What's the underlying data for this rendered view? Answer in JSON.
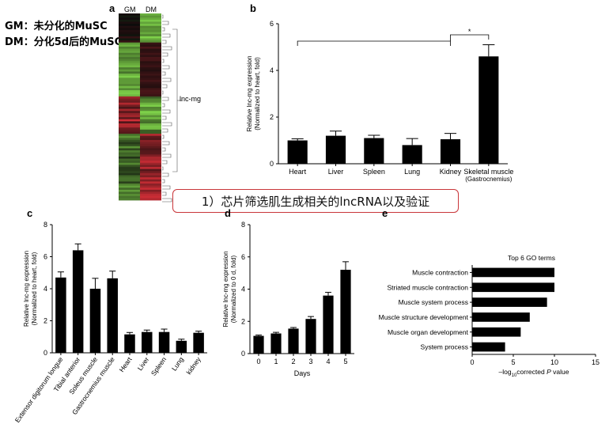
{
  "notes": {
    "gm": "GM：未分化的MuSC",
    "dm": "DM：分化5d后的MuSC"
  },
  "banner": "1）芯片筛选肌生成相关的lncRNA以及验证",
  "panels": {
    "a": {
      "letter": "a",
      "columns": [
        "GM",
        "DM"
      ],
      "gene_label": "lnc-mg",
      "colors": {
        "high": "#e0313a",
        "low": "#7fd24a",
        "mid": "#0a0a0a"
      }
    },
    "b": {
      "letter": "b",
      "significance": "*"
    },
    "c": {
      "letter": "c"
    },
    "d": {
      "letter": "d"
    },
    "e": {
      "letter": "e"
    }
  },
  "chart_data": [
    {
      "id": "b",
      "type": "bar",
      "categories": [
        "Heart",
        "Liver",
        "Spleen",
        "Lung",
        "Kidney",
        "Skeletal muscle\n(Gastrocnemius)"
      ],
      "values": [
        1.0,
        1.2,
        1.1,
        0.8,
        1.05,
        4.6
      ],
      "errors": [
        0.07,
        0.2,
        0.12,
        0.28,
        0.25,
        0.5
      ],
      "ylabel": [
        "Relative lnc-mg expression",
        "(Normalized to heart, fold)"
      ],
      "ylim": [
        0,
        6
      ],
      "yticks": [
        0,
        2,
        4,
        6
      ]
    },
    {
      "id": "c",
      "type": "bar",
      "categories": [
        "Extensor digitorum longue",
        "Tibial anterior",
        "Soleus muscle",
        "Gastrocnemius muscle",
        "Heart",
        "Liver",
        "Spleen",
        "Lung",
        "kidney"
      ],
      "values": [
        4.7,
        6.4,
        4.0,
        4.65,
        1.15,
        1.3,
        1.3,
        0.75,
        1.25
      ],
      "errors": [
        0.35,
        0.4,
        0.65,
        0.45,
        0.12,
        0.12,
        0.18,
        0.1,
        0.1
      ],
      "ylabel": [
        "Relative lnc-mg expression",
        "(Normalized to heart, fold)"
      ],
      "ylim": [
        0,
        8
      ],
      "yticks": [
        0,
        2,
        4,
        6,
        8
      ]
    },
    {
      "id": "d",
      "type": "bar",
      "categories": [
        "0",
        "1",
        "2",
        "3",
        "4",
        "5"
      ],
      "values": [
        1.1,
        1.25,
        1.55,
        2.15,
        3.6,
        5.2
      ],
      "errors": [
        0.05,
        0.07,
        0.07,
        0.15,
        0.2,
        0.5
      ],
      "xlabel": "Days",
      "ylabel": [
        "Relative lnc-mg expression",
        "(Normalized to 0 d, fold)"
      ],
      "ylim": [
        0,
        8
      ],
      "yticks": [
        0,
        2,
        4,
        6,
        8
      ]
    },
    {
      "id": "e",
      "type": "bar",
      "orientation": "horizontal",
      "title": "Top 6 GO terms",
      "categories": [
        "Muscle contraction",
        "Striated muscle contraction",
        "Muscle system process",
        "Muscle structure development",
        "Muscle organ development",
        "System process"
      ],
      "values": [
        10.0,
        10.0,
        9.1,
        7.0,
        5.9,
        4.0
      ],
      "xlabel_parts": [
        "–log",
        "10",
        "corrected ",
        "P",
        " value"
      ],
      "xlim": [
        0,
        15
      ],
      "xticks": [
        0,
        5,
        10,
        15
      ]
    }
  ]
}
